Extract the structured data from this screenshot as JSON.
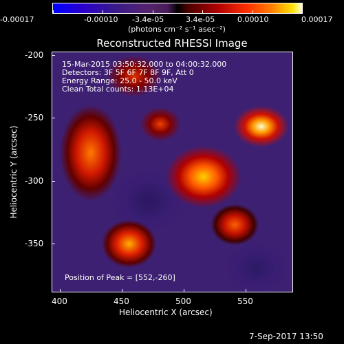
{
  "colorbar": {
    "ticks": [
      "-0.00017",
      "-0.00010",
      "-3.4e-05",
      "3.4e-05",
      "0.00010",
      "0.00017"
    ],
    "unit_label": "(photons cm⁻² s⁻¹ asec⁻²)"
  },
  "title": "Reconstructed RHESSI Image",
  "info": {
    "line1": "15-Mar-2015 03:50:32.000 to 04:00:32.000",
    "line2": "Detectors: 3F 5F 6F 7F 8F 9F, Att 0",
    "line3": "Energy Range: 25.0 - 50.0 keV",
    "line4": "Clean    Total counts: 1.13E+04"
  },
  "peak": "Position of Peak = [552,-260]",
  "axes": {
    "xlabel": "Heliocentric X (arcsec)",
    "ylabel": "Heliocentric Y (arcsec)",
    "xticks": [
      "400",
      "450",
      "500",
      "550"
    ],
    "yticks": [
      "-200",
      "-250",
      "-300",
      "-350"
    ]
  },
  "timestamp": "7-Sep-2017 13:50",
  "colors": {
    "background": "#000000",
    "text": "#ffffff"
  }
}
